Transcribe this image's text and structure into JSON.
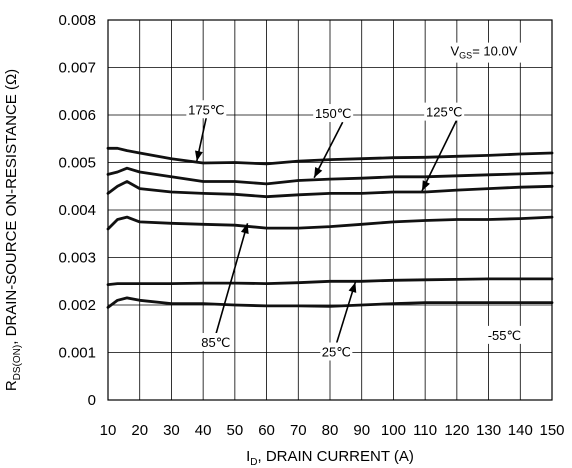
{
  "chart_data": {
    "type": "line",
    "xlabel_main": "I",
    "xlabel_sub": "D",
    "xlabel_rest": ", DRAIN CURRENT (A)",
    "ylabel_main": "R",
    "ylabel_sub": "DS(ON)",
    "ylabel_rest": ",   DRAIN-SOURCE ON-RESISTANCE (Ω)",
    "xlim": [
      10,
      150
    ],
    "ylim": [
      0,
      0.008
    ],
    "x_ticks": [
      "10",
      "20",
      "30",
      "40",
      "50",
      "60",
      "70",
      "80",
      "90",
      "100",
      "110",
      "120",
      "130",
      "140",
      "150"
    ],
    "y_ticks": [
      "0",
      "0.001",
      "0.002",
      "0.003",
      "0.004",
      "0.005",
      "0.006",
      "0.007",
      "0.008"
    ],
    "grid": true,
    "condition": {
      "main": "V",
      "sub": "GS",
      "rest": "= 10.0V"
    },
    "series": [
      {
        "name": "175℃",
        "x": [
          10,
          13,
          16,
          20,
          30,
          40,
          50,
          60,
          70,
          80,
          90,
          100,
          110,
          120,
          130,
          140,
          150
        ],
        "y": [
          0.0053,
          0.0053,
          0.00525,
          0.0052,
          0.00508,
          0.00499,
          0.005,
          0.00497,
          0.00503,
          0.00506,
          0.00508,
          0.0051,
          0.00511,
          0.00513,
          0.00515,
          0.00518,
          0.0052
        ]
      },
      {
        "name": "150℃",
        "x": [
          10,
          13,
          16,
          20,
          30,
          40,
          50,
          60,
          70,
          80,
          90,
          100,
          110,
          120,
          130,
          140,
          150
        ],
        "y": [
          0.00475,
          0.0048,
          0.00488,
          0.0048,
          0.0047,
          0.0046,
          0.0046,
          0.00455,
          0.00462,
          0.00465,
          0.00467,
          0.0047,
          0.0047,
          0.00472,
          0.00474,
          0.00476,
          0.00478
        ]
      },
      {
        "name": "125℃",
        "x": [
          10,
          13,
          16,
          20,
          30,
          40,
          50,
          60,
          70,
          80,
          90,
          100,
          110,
          120,
          130,
          140,
          150
        ],
        "y": [
          0.00435,
          0.0045,
          0.0046,
          0.00445,
          0.00438,
          0.00435,
          0.00433,
          0.00428,
          0.00432,
          0.00435,
          0.00435,
          0.00438,
          0.00438,
          0.00442,
          0.00445,
          0.00448,
          0.0045
        ]
      },
      {
        "name": "85℃",
        "x": [
          10,
          13,
          16,
          20,
          30,
          40,
          50,
          60,
          70,
          80,
          90,
          100,
          110,
          120,
          130,
          140,
          150
        ],
        "y": [
          0.0036,
          0.0038,
          0.00385,
          0.00375,
          0.00372,
          0.0037,
          0.00368,
          0.00362,
          0.00362,
          0.00365,
          0.0037,
          0.00375,
          0.00378,
          0.0038,
          0.0038,
          0.00382,
          0.00385
        ]
      },
      {
        "name": "25℃",
        "x": [
          10,
          13,
          16,
          20,
          30,
          40,
          50,
          60,
          70,
          80,
          90,
          100,
          110,
          120,
          130,
          140,
          150
        ],
        "y": [
          0.00243,
          0.00245,
          0.00245,
          0.00245,
          0.00245,
          0.00246,
          0.00246,
          0.00245,
          0.00247,
          0.0025,
          0.0025,
          0.00252,
          0.00253,
          0.00254,
          0.00255,
          0.00255,
          0.00255
        ]
      },
      {
        "name": "-55℃",
        "x": [
          10,
          13,
          16,
          20,
          30,
          40,
          50,
          60,
          70,
          80,
          90,
          100,
          110,
          120,
          130,
          140,
          150
        ],
        "y": [
          0.00195,
          0.0021,
          0.00215,
          0.0021,
          0.00203,
          0.00203,
          0.002,
          0.00198,
          0.00198,
          0.00197,
          0.002,
          0.00203,
          0.00205,
          0.00205,
          0.00205,
          0.00205,
          0.00205
        ]
      }
    ],
    "annotations": [
      {
        "text": "175℃",
        "series": "175℃",
        "label_at": [
          41,
          0.0061
        ],
        "arrow_from": [
          41,
          0.00595
        ],
        "arrow_to": [
          38,
          0.00503
        ]
      },
      {
        "text": "150℃",
        "series": "150℃",
        "label_at": [
          81,
          0.00602
        ],
        "arrow_from": [
          84,
          0.00585
        ],
        "arrow_to": [
          75,
          0.00468
        ]
      },
      {
        "text": "125℃",
        "series": "125℃",
        "label_at": [
          116,
          0.00605
        ],
        "arrow_from": [
          120,
          0.0059
        ],
        "arrow_to": [
          109,
          0.0044
        ]
      },
      {
        "text": "85℃",
        "series": "85℃",
        "label_at": [
          44,
          0.0012
        ],
        "arrow_from": [
          44,
          0.00138
        ],
        "arrow_to": [
          54,
          0.00372
        ]
      },
      {
        "text": "25℃",
        "series": "25℃",
        "label_at": [
          82,
          0.001
        ],
        "arrow_from": [
          82,
          0.00118
        ],
        "arrow_to": [
          88,
          0.00248
        ]
      },
      {
        "text": "-55℃",
        "series": "-55℃",
        "label_at": [
          135,
          0.00135
        ],
        "arrow_from": null,
        "arrow_to": null
      }
    ]
  }
}
